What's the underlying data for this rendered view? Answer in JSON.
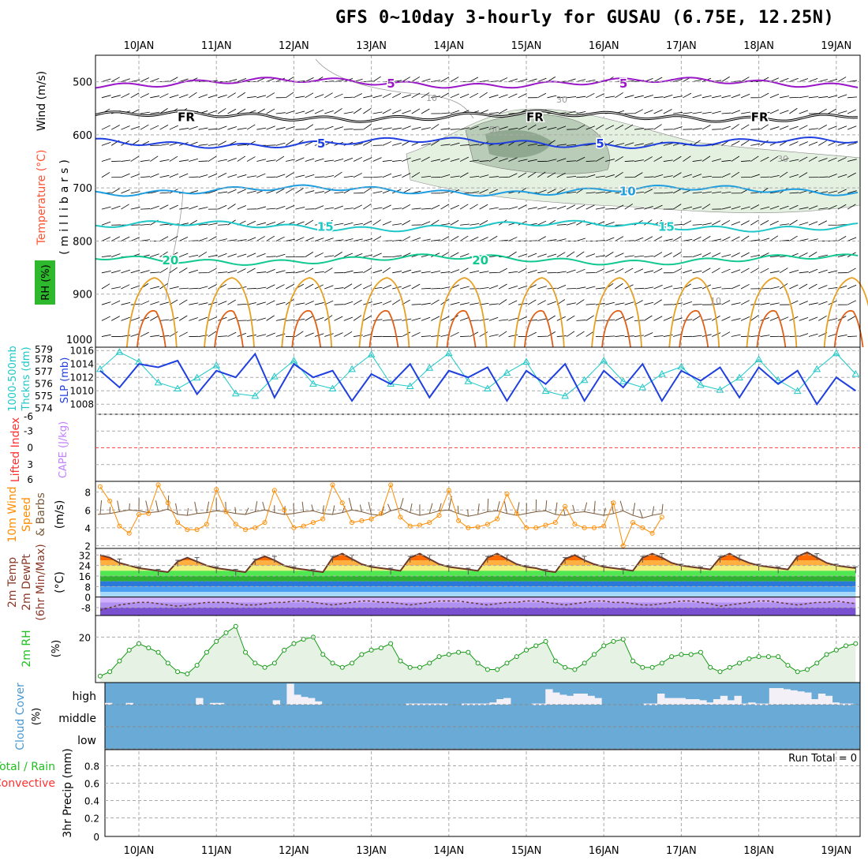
{
  "title": "GFS 0~10day 3-hourly for GUSAU (6.75E, 12.25N)",
  "date_labels": [
    "10JAN",
    "11JAN",
    "12JAN",
    "13JAN",
    "14JAN",
    "15JAN",
    "16JAN",
    "17JAN",
    "18JAN",
    "19JAN"
  ],
  "colors": {
    "slp": "#1f3fe0",
    "thickness": "#1ec8c8",
    "wind_speed": "#ff8c00",
    "barbs": "#7a5a3a",
    "rh": "#159a15",
    "cloud": "#6aaad6",
    "li": "#ff3030",
    "cape": "#c080ff"
  },
  "chart_data": [
    {
      "type": "heatmap",
      "name": "upper-air",
      "ylabel_parts": [
        "Wind (m/s)",
        "Temperature (°C)",
        "RH (%)",
        "(millibars)"
      ],
      "yticks": [
        "500",
        "600",
        "700",
        "800",
        "900",
        "1000"
      ],
      "ylim": [
        450,
        1000
      ],
      "temperature_contours": [
        {
          "label": "-5",
          "show": "5",
          "pressure": 502,
          "color": "#9a16c8",
          "labelx": [
            3.2,
            6.2
          ]
        },
        {
          "label": "FR",
          "show": "FR",
          "pressure": 565,
          "color": "#000000",
          "labelx": [
            0.5,
            5.0,
            7.9
          ]
        },
        {
          "label": "-5",
          "show": "5",
          "pressure": 615,
          "color": "#1f3fe0",
          "labelx": [
            2.3,
            5.9
          ]
        },
        {
          "label": "10",
          "show": "10",
          "pressure": 705,
          "color": "#1e9ee0",
          "labelx": [
            6.2
          ]
        },
        {
          "label": "15",
          "show": "15",
          "pressure": 772,
          "color": "#1ec8c8",
          "labelx": [
            2.3,
            6.7
          ]
        },
        {
          "label": "20",
          "show": "20",
          "pressure": 835,
          "color": "#10c890",
          "labelx": [
            0.3,
            4.3
          ]
        }
      ],
      "rh_labels": [
        "10",
        "30",
        "30",
        "50",
        "10"
      ]
    },
    {
      "type": "line",
      "name": "slp-thickness",
      "ylabel_left": "1000-500mb Thckns (dm)",
      "ylabel_right": "SLP (mb)",
      "thickness_ticks": [
        "579",
        "578",
        "577",
        "576",
        "575",
        "574"
      ],
      "slp_ticks": [
        "1016",
        "1014",
        "1012",
        "1010",
        "1008"
      ],
      "thickness_lim": [
        573.5,
        579
      ],
      "slp_lim": [
        1006.5,
        1016.5
      ],
      "slp": [
        1013,
        1010.5,
        1014,
        1013.5,
        1014.5,
        1009.5,
        1013,
        1012,
        1015.5,
        1009,
        1014,
        1012,
        1013,
        1008.5,
        1012.5,
        1011,
        1014,
        1009,
        1013,
        1012,
        1013.5,
        1008.5,
        1013,
        1011,
        1014,
        1008.5,
        1013,
        1010.5,
        1014,
        1008.5,
        1013,
        1011.5,
        1013.5,
        1009,
        1013.5,
        1011,
        1013,
        1008,
        1012,
        1010
      ],
      "thickness": [
        577.2,
        578.6,
        577.8,
        576.1,
        575.6,
        576.5,
        577.5,
        575.2,
        575.0,
        576.6,
        577.9,
        576.0,
        575.6,
        577.2,
        578.4,
        576.0,
        575.8,
        577.3,
        578.5,
        576.2,
        575.6,
        576.9,
        577.8,
        575.4,
        575.0,
        576.3,
        577.9,
        576.2,
        575.7,
        576.8,
        577.4,
        575.9,
        575.5,
        576.5,
        578.0,
        576.3,
        575.4,
        577.2,
        578.5,
        576.8
      ]
    },
    {
      "type": "line",
      "name": "cape-li",
      "ylabel_left": "Lifted Index",
      "ylabel_right": "CAPE (J/kg)",
      "yticks": [
        "-6",
        "-3",
        "0",
        "3",
        "6"
      ],
      "ylim": [
        -6,
        6
      ]
    },
    {
      "type": "line",
      "name": "wind",
      "ylabel": [
        "10m Wind",
        "Speed",
        "& Barbs",
        "(m/s)"
      ],
      "yticks": [
        "8",
        "6",
        "4",
        "2"
      ],
      "ylim": [
        1.7,
        9.2
      ],
      "speed": [
        8.6,
        7.0,
        4.2,
        3.4,
        5.5,
        5.6,
        8.8,
        6.8,
        4.6,
        3.8,
        3.8,
        4.4,
        8.3,
        5.8,
        4.4,
        3.8,
        4.0,
        4.6,
        8.2,
        6.0,
        4.0,
        4.2,
        4.6,
        5.0,
        8.8,
        6.8,
        4.6,
        4.8,
        5.0,
        5.6,
        8.8,
        5.2,
        4.2,
        4.3,
        4.6,
        5.4,
        8.2,
        4.8,
        4.0,
        4.1,
        4.4,
        5.0,
        7.8,
        5.6,
        4.0,
        4.0,
        4.3,
        4.6,
        6.4,
        4.4,
        4.0,
        4.0,
        4.2,
        6.8,
        2.0,
        4.6,
        4.0,
        3.4,
        5.2
      ],
      "barb_line": [
        5.5,
        5.6,
        5.8,
        6.0,
        5.9,
        5.7,
        5.8,
        6.1,
        5.5,
        5.4,
        5.6,
        5.7,
        5.9,
        5.8,
        5.6,
        5.5,
        5.8,
        6.0,
        5.7,
        5.5,
        5.6,
        5.8,
        5.9,
        5.6,
        5.5,
        5.7,
        6.0,
        5.8,
        5.5,
        5.4,
        5.9,
        6.2,
        5.7,
        5.4,
        5.6,
        5.9,
        6.0,
        5.6,
        5.3,
        5.5,
        5.8,
        5.9,
        5.6,
        5.4,
        5.6,
        5.8,
        5.9,
        5.5,
        5.4,
        5.7,
        5.8,
        5.6,
        5.4,
        5.6,
        5.9,
        5.4,
        5.1,
        5.4,
        5.6
      ]
    },
    {
      "type": "area",
      "name": "temperature",
      "ylabel": [
        "2m Temp",
        "2m DewPt",
        "(6hr Min/Max)",
        "(°C)"
      ],
      "yticks": [
        "32",
        "24",
        "16",
        "8",
        "0",
        "-8"
      ],
      "ylim": [
        -14,
        37
      ],
      "temp": [
        32,
        30,
        26,
        24,
        22,
        21,
        20,
        19,
        27,
        30,
        27,
        24,
        22,
        21,
        20,
        19,
        28,
        31,
        28,
        24,
        22,
        21,
        20,
        19,
        30,
        33,
        29,
        25,
        23,
        22,
        21,
        20,
        30,
        33,
        29,
        25,
        23,
        22,
        21,
        20,
        30,
        33,
        29,
        25,
        23,
        22,
        20,
        19,
        29,
        32,
        28,
        25,
        23,
        22,
        21,
        20,
        30,
        33,
        30,
        26,
        24,
        23,
        22,
        21,
        30,
        33,
        29,
        26,
        24,
        23,
        22,
        21,
        31,
        34,
        30,
        26,
        24,
        23,
        22
      ],
      "dewpoint": [
        -10,
        -8,
        -6,
        -5,
        -4,
        -4,
        -5,
        -6,
        -7,
        -6,
        -5,
        -4,
        -4,
        -4,
        -5,
        -6,
        -6,
        -5,
        -4,
        -4,
        -3,
        -3,
        -4,
        -5,
        -6,
        -5,
        -4,
        -3,
        -3,
        -4,
        -4,
        -5,
        -6,
        -5,
        -4,
        -3,
        -3,
        -3,
        -4,
        -5,
        -6,
        -5,
        -4,
        -4,
        -3,
        -3,
        -4,
        -5,
        -6,
        -5,
        -4,
        -3,
        -3,
        -4,
        -4,
        -5,
        -6,
        -6,
        -5,
        -4,
        -3,
        -3,
        -4,
        -5,
        -7,
        -6,
        -5,
        -4,
        -3,
        -3,
        -4,
        -5,
        -6,
        -5,
        -4,
        -4,
        -3,
        -4,
        -5
      ]
    },
    {
      "type": "area",
      "name": "rh",
      "ylabel": [
        "2m RH",
        "(%)"
      ],
      "yticks": [
        "20"
      ],
      "ylim": [
        0,
        30
      ],
      "values": [
        2,
        4,
        9,
        14,
        17,
        15,
        13,
        8,
        4,
        3,
        7,
        13,
        18,
        22,
        25,
        13,
        8,
        6,
        8,
        14,
        17,
        19,
        20,
        12,
        8,
        6,
        8,
        12,
        14,
        15,
        17,
        9,
        6,
        6,
        8,
        11,
        12,
        13,
        13,
        8,
        5,
        5,
        8,
        11,
        14,
        16,
        18,
        9,
        6,
        5,
        8,
        12,
        16,
        18,
        19,
        9,
        6,
        6,
        8,
        11,
        12,
        12,
        13,
        6,
        4,
        6,
        8,
        10,
        11,
        11,
        11,
        7,
        4,
        5,
        8,
        12,
        14,
        16,
        17
      ]
    },
    {
      "type": "bar",
      "name": "cloud-cover",
      "ylabel": [
        "Cloud Cover",
        "(%)"
      ],
      "yticks": [
        "high",
        "middle",
        "low"
      ],
      "high": [
        5,
        0,
        0,
        5,
        0,
        0,
        0,
        0,
        0,
        0,
        0,
        0,
        0,
        0,
        0,
        0,
        0,
        0,
        0,
        0,
        0,
        0,
        0,
        0,
        0,
        0,
        0,
        0,
        0,
        0,
        0,
        0,
        0,
        0,
        0,
        0,
        0,
        0,
        0,
        0,
        0,
        0,
        0,
        0,
        0,
        0,
        0,
        0,
        0,
        0,
        0,
        0,
        0,
        0,
        0,
        0,
        0,
        0,
        0,
        0,
        0,
        0,
        0,
        0,
        0,
        0,
        0,
        0,
        0,
        0,
        0,
        0,
        0,
        0,
        0,
        0,
        0,
        0,
        0
      ],
      "high_pct": [
        8,
        0,
        0,
        8,
        0,
        0,
        0,
        0,
        0,
        0,
        0,
        0,
        0,
        30,
        0,
        8,
        8,
        0,
        0,
        0,
        0,
        0,
        0,
        0,
        20,
        0,
        95,
        45,
        35,
        30,
        15,
        0,
        0,
        0,
        0,
        0,
        0,
        0,
        0,
        0,
        0,
        0,
        0,
        5,
        5,
        5,
        5,
        5,
        5,
        0,
        0,
        5,
        5,
        5,
        5,
        10,
        25,
        30,
        0,
        0,
        0,
        5,
        5,
        70,
        55,
        45,
        40,
        50,
        50,
        40,
        30,
        0,
        0,
        0,
        0,
        0,
        0,
        5,
        5,
        50,
        30,
        30,
        30,
        25,
        25,
        20,
        10,
        25,
        40,
        20,
        40,
        5,
        10,
        5,
        5,
        75,
        75,
        70,
        65,
        60,
        55,
        25,
        50,
        40,
        10,
        5,
        5,
        0
      ]
    },
    {
      "type": "bar",
      "name": "precip",
      "ylabel": [
        "Total / Rain",
        "Convective",
        "3hr Precip (mm)"
      ],
      "yticks": [
        "0.8",
        "0.6",
        "0.4",
        "0.2",
        "0"
      ],
      "ylim": [
        0,
        1
      ],
      "run_total_label": "Run Total = 0"
    }
  ]
}
